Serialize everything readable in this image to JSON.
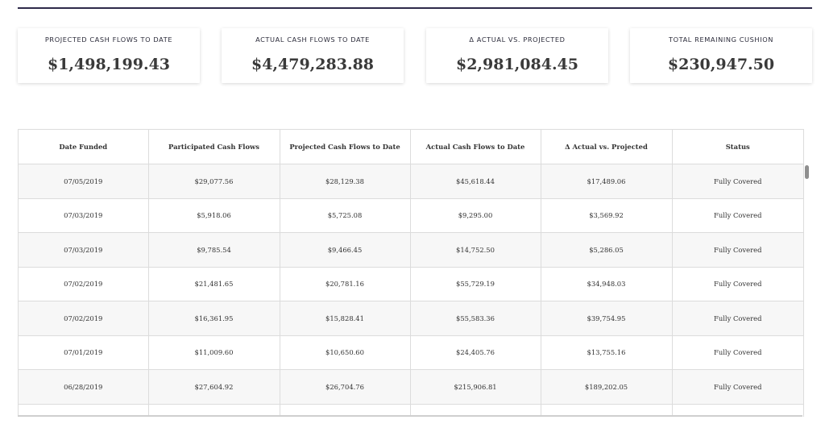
{
  "cards": [
    {
      "label": "PROJECTED CASH FLOWS TO DATE",
      "value": "$1,498,199.43"
    },
    {
      "label": "ACTUAL CASH FLOWS TO DATE",
      "value": "$4,479,283.88"
    },
    {
      "label": "Δ ACTUAL VS. PROJECTED",
      "value": "$2,981,084.45"
    },
    {
      "label": "TOTAL REMAINING CUSHION",
      "value": "$230,947.50"
    }
  ],
  "table": {
    "headers": [
      "Date Funded",
      "Participated Cash Flows",
      "Projected Cash Flows to Date",
      "Actual Cash Flows to Date",
      "Δ Actual vs. Projected",
      "Status"
    ],
    "rows": [
      [
        "07/05/2019",
        "$29,077.56",
        "$28,129.38",
        "$45,618.44",
        "$17,489.06",
        "Fully Covered"
      ],
      [
        "07/03/2019",
        "$5,918.06",
        "$5,725.08",
        "$9,295.00",
        "$3,569.92",
        "Fully Covered"
      ],
      [
        "07/03/2019",
        "$9,785.54",
        "$9,466.45",
        "$14,752.50",
        "$5,286.05",
        "Fully Covered"
      ],
      [
        "07/02/2019",
        "$21,481.65",
        "$20,781.16",
        "$55,729.19",
        "$34,948.03",
        "Fully Covered"
      ],
      [
        "07/02/2019",
        "$16,361.95",
        "$15,828.41",
        "$55,583.36",
        "$39,754.95",
        "Fully Covered"
      ],
      [
        "07/01/2019",
        "$11,009.60",
        "$10,650.60",
        "$24,405.76",
        "$13,755.16",
        "Fully Covered"
      ],
      [
        "06/28/2019",
        "$27,604.92",
        "$26,704.76",
        "$215,906.81",
        "$189,202.05",
        "Fully Covered"
      ],
      [
        "",
        "",
        "",
        "",
        "",
        ""
      ]
    ]
  }
}
